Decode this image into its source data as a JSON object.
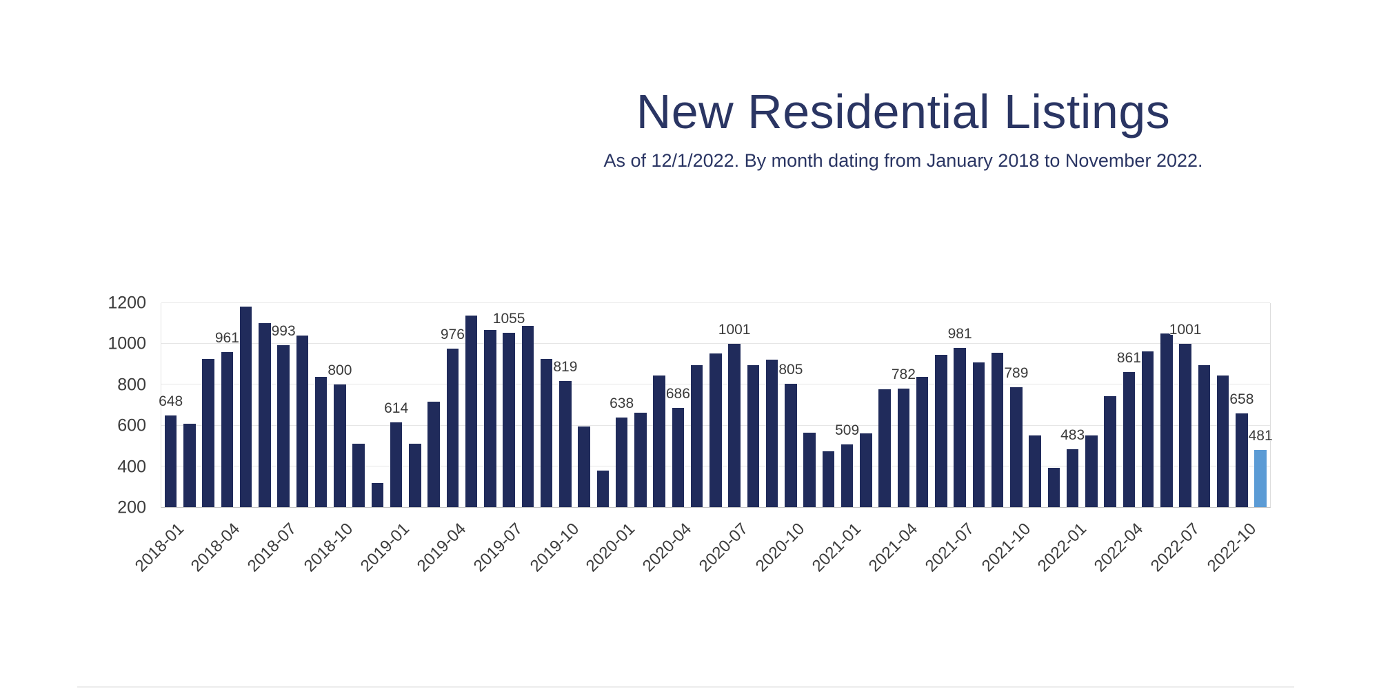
{
  "header": {
    "title": "New Residential Listings",
    "subtitle": "As of 12/1/2022. By month dating from January 2018 to November 2022."
  },
  "chart_data": {
    "type": "bar",
    "title": "New Residential Listings",
    "subtitle": "As of 12/1/2022. By month dating from January 2018 to November 2022.",
    "categories": [
      "2018-01",
      "2018-02",
      "2018-03",
      "2018-04",
      "2018-05",
      "2018-06",
      "2018-07",
      "2018-08",
      "2018-09",
      "2018-10",
      "2018-11",
      "2018-12",
      "2019-01",
      "2019-02",
      "2019-03",
      "2019-04",
      "2019-05",
      "2019-06",
      "2019-07",
      "2019-08",
      "2019-09",
      "2019-10",
      "2019-11",
      "2019-12",
      "2020-01",
      "2020-02",
      "2020-03",
      "2020-04",
      "2020-05",
      "2020-06",
      "2020-07",
      "2020-08",
      "2020-09",
      "2020-10",
      "2020-11",
      "2020-12",
      "2021-01",
      "2021-02",
      "2021-03",
      "2021-04",
      "2021-05",
      "2021-06",
      "2021-07",
      "2021-08",
      "2021-09",
      "2021-10",
      "2021-11",
      "2021-12",
      "2022-01",
      "2022-02",
      "2022-03",
      "2022-04",
      "2022-05",
      "2022-06",
      "2022-07",
      "2022-08",
      "2022-09",
      "2022-10",
      "2022-11"
    ],
    "values": [
      648,
      608,
      925,
      961,
      1183,
      1103,
      993,
      1040,
      838,
      800,
      512,
      318,
      614,
      512,
      718,
      976,
      1140,
      1068,
      1055,
      1090,
      925,
      819,
      595,
      380,
      638,
      663,
      845,
      686,
      897,
      952,
      1001,
      897,
      924,
      805,
      566,
      475,
      509,
      563,
      777,
      782,
      838,
      948,
      981,
      910,
      956,
      789,
      551,
      394,
      483,
      551,
      745,
      861,
      962,
      1052,
      1001,
      897,
      845,
      658,
      481
    ],
    "labeled_months": [
      "2018-01",
      "2018-04",
      "2018-07",
      "2018-10",
      "2019-01",
      "2019-04",
      "2019-07",
      "2019-10",
      "2020-01",
      "2020-04",
      "2020-07",
      "2020-10",
      "2021-01",
      "2021-04",
      "2021-07",
      "2021-10",
      "2022-01",
      "2022-04",
      "2022-07",
      "2022-10",
      "2022-11"
    ],
    "x_tick_labels": [
      "2018-01",
      "2018-04",
      "2018-07",
      "2018-10",
      "2019-01",
      "2019-04",
      "2019-07",
      "2019-10",
      "2020-01",
      "2020-04",
      "2020-07",
      "2020-10",
      "2021-01",
      "2021-04",
      "2021-07",
      "2021-10",
      "2022-01",
      "2022-04",
      "2022-07",
      "2022-10"
    ],
    "y_ticks": [
      200,
      400,
      600,
      800,
      1000,
      1200
    ],
    "ylim": [
      200,
      1200
    ],
    "grid": true,
    "legend": false,
    "bar_color": "#202b5b",
    "highlight_color": "#5b9bd5",
    "highlight_month": "2022-11",
    "xlabel": "",
    "ylabel": ""
  }
}
